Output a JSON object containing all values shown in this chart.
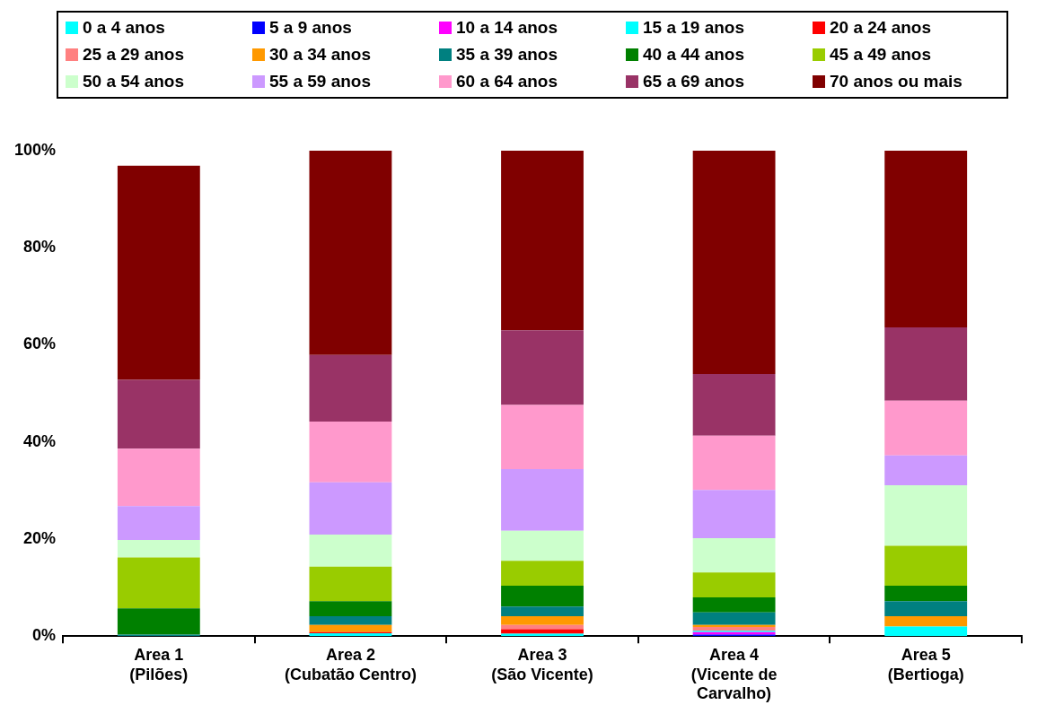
{
  "chart_data": {
    "type": "bar",
    "stacked": true,
    "legend": "top",
    "grid": false,
    "categories": [
      "Area 1 (Pilões)",
      "Area 2 (Cubatão Centro)",
      "Area 3 (São Vicente)",
      "Area 4 (Vicente de Carvalho)",
      "Area 5 (Bertioga)"
    ],
    "ylim": [
      0,
      100
    ],
    "yticks": [
      {
        "value": 0,
        "label": "0%"
      },
      {
        "value": 20,
        "label": "20%"
      },
      {
        "value": 40,
        "label": "40%"
      },
      {
        "value": 60,
        "label": "60%"
      },
      {
        "value": 80,
        "label": "80%"
      },
      {
        "value": 100,
        "label": "100%"
      }
    ],
    "series": [
      {
        "name": "0 a 4 anos",
        "color": "#00ffff",
        "values": [
          0,
          0.6,
          0.5,
          0,
          2.0
        ]
      },
      {
        "name": "5 a 9 anos",
        "color": "#0000ff",
        "values": [
          0,
          0,
          0,
          0.3,
          0
        ]
      },
      {
        "name": "10 a 14 anos",
        "color": "#ff00ff",
        "values": [
          0,
          0,
          0,
          0.5,
          0
        ]
      },
      {
        "name": "15 a 19 anos",
        "color": "#00ffff",
        "values": [
          0,
          0,
          0,
          0.3,
          0
        ]
      },
      {
        "name": "20 a 24 anos",
        "color": "#ff0000",
        "values": [
          0,
          0.2,
          0.9,
          0,
          0
        ]
      },
      {
        "name": "25 a 29 anos",
        "color": "#ff8080",
        "values": [
          0,
          0,
          0.9,
          0.8,
          0
        ]
      },
      {
        "name": "30 a 34 anos",
        "color": "#ff9900",
        "values": [
          0,
          1.5,
          1.8,
          0.4,
          2.1
        ]
      },
      {
        "name": "35 a 39 anos",
        "color": "#008080",
        "values": [
          0.3,
          1.8,
          2.0,
          2.6,
          3.1
        ]
      },
      {
        "name": "40 a 44 anos",
        "color": "#008000",
        "values": [
          5.4,
          3.1,
          4.3,
          3.1,
          3.2
        ]
      },
      {
        "name": "45 a 49 anos",
        "color": "#99cc00",
        "values": [
          10.5,
          7.1,
          5.1,
          5.1,
          8.2
        ]
      },
      {
        "name": "50 a 54 anos",
        "color": "#ccffcc",
        "values": [
          3.6,
          6.6,
          6.2,
          7.1,
          12.5
        ]
      },
      {
        "name": "55 a 59 anos",
        "color": "#cc99ff",
        "values": [
          7.0,
          10.8,
          12.7,
          9.9,
          6.1
        ]
      },
      {
        "name": "60 a 64 anos",
        "color": "#ff99cc",
        "values": [
          11.8,
          12.5,
          13.2,
          11.2,
          11.3
        ]
      },
      {
        "name": "65 a 69 anos",
        "color": "#993366",
        "values": [
          14.2,
          13.7,
          15.4,
          12.7,
          15.1
        ]
      },
      {
        "name": "70 anos ou mais",
        "color": "#800000",
        "values": [
          44.1,
          42.1,
          37.0,
          46.0,
          36.4
        ]
      }
    ]
  }
}
